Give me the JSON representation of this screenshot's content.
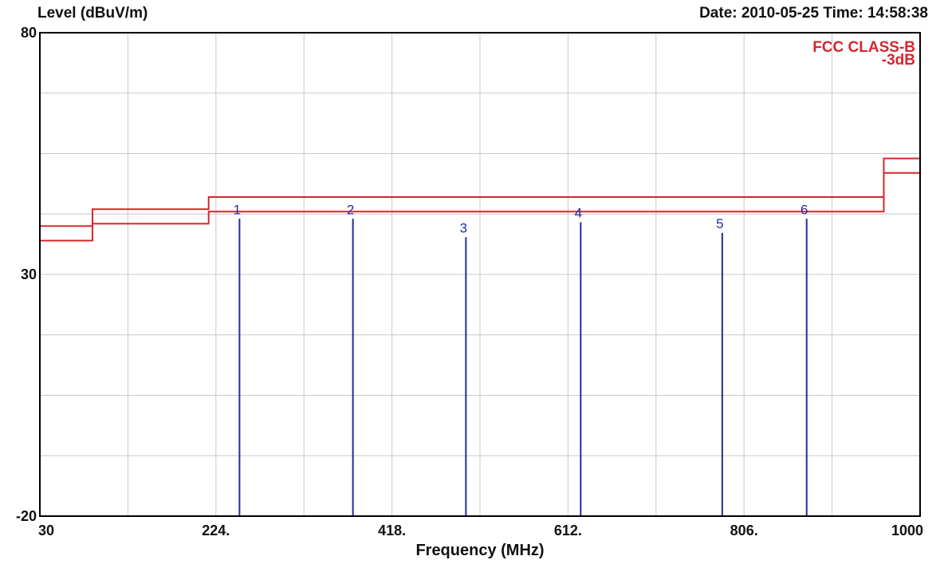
{
  "header": {
    "ylabel": "Level (dBuV/m)",
    "datetime": "Date: 2010-05-25  Time: 14:58:38"
  },
  "legend": {
    "line1": "FCC CLASS-B",
    "line2": "-3dB"
  },
  "colors": {
    "limit": "#d7262a",
    "marker": "#1f2ea0",
    "grid": "#c8c8c8",
    "frame": "#000000"
  },
  "chart_data": {
    "type": "line",
    "title": "",
    "xlabel": "Frequency (MHz)",
    "ylabel": "Level (dBuV/m)",
    "xlim": [
      30,
      1000
    ],
    "ylim": [
      -20,
      80
    ],
    "xticks": [
      {
        "value": 30,
        "label": "30"
      },
      {
        "value": 224,
        "label": "224."
      },
      {
        "value": 418,
        "label": "418."
      },
      {
        "value": 612,
        "label": "612."
      },
      {
        "value": 806,
        "label": "806."
      },
      {
        "value": 1000,
        "label": "1000"
      }
    ],
    "yticks": [
      {
        "value": 80,
        "label": "80"
      },
      {
        "value": 30,
        "label": "30"
      },
      {
        "value": -20,
        "label": "-20"
      }
    ],
    "grid": true,
    "series": [
      {
        "name": "FCC CLASS-B",
        "points": [
          [
            30,
            40
          ],
          [
            88,
            40
          ],
          [
            88,
            43.5
          ],
          [
            216,
            43.5
          ],
          [
            216,
            46
          ],
          [
            960,
            46
          ],
          [
            960,
            54
          ],
          [
            1000,
            54
          ]
        ]
      },
      {
        "name": "-3dB",
        "points": [
          [
            30,
            37
          ],
          [
            88,
            37
          ],
          [
            88,
            40.5
          ],
          [
            216,
            40.5
          ],
          [
            216,
            43
          ],
          [
            960,
            43
          ],
          [
            960,
            51
          ],
          [
            1000,
            51
          ]
        ]
      }
    ],
    "markers": [
      {
        "label": "1",
        "x": 250,
        "y": 41.5
      },
      {
        "label": "2",
        "x": 375,
        "y": 41.5
      },
      {
        "label": "3",
        "x": 499.5,
        "y": 37.7
      },
      {
        "label": "4",
        "x": 626,
        "y": 40.8
      },
      {
        "label": "5",
        "x": 782,
        "y": 38.6
      },
      {
        "label": "6",
        "x": 875,
        "y": 41.5
      }
    ]
  }
}
